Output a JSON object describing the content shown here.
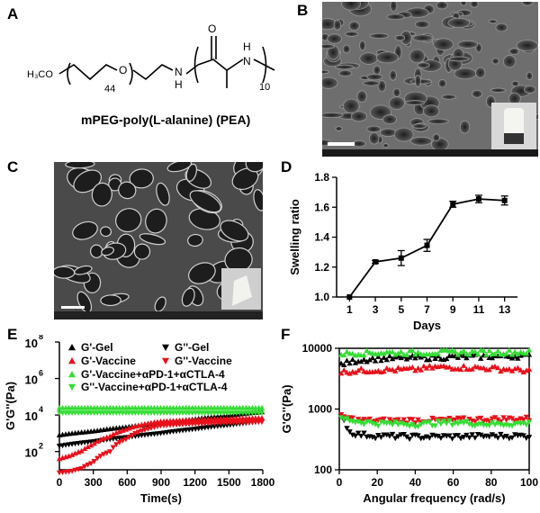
{
  "panels": {
    "A": {
      "letter": "A",
      "molecule_name": "mPEG-poly(L-alanine) (PEA)",
      "atoms": {
        "o_carbonyl": "O",
        "h1": "H",
        "n1": "N",
        "h2": "H",
        "n2": "N",
        "o_ether": "O",
        "methoxy": "H₃CO"
      },
      "subscripts": {
        "peg": "44",
        "pala": "10"
      }
    },
    "B": {
      "letter": "B"
    },
    "C": {
      "letter": "C"
    },
    "D": {
      "letter": "D"
    },
    "E": {
      "letter": "E"
    },
    "F": {
      "letter": "F"
    }
  },
  "chart_data": [
    {
      "panel": "D",
      "type": "line",
      "xlabel": "Days",
      "ylabel": "Swelling ratio",
      "x": [
        1,
        3,
        5,
        7,
        9,
        11,
        13
      ],
      "series": [
        {
          "values": [
            1.0,
            1.235,
            1.26,
            1.345,
            1.62,
            1.655,
            1.645
          ],
          "errors": [
            0.0,
            0.01,
            0.05,
            0.04,
            0.02,
            0.025,
            0.03
          ],
          "color": "#000000"
        }
      ],
      "xticks": [
        "1",
        "3",
        "5",
        "7",
        "9",
        "11",
        "13"
      ],
      "yticks": [
        "1.0",
        "1.2",
        "1.4",
        "1.6",
        "1.8"
      ],
      "ylim": [
        1.0,
        1.8
      ]
    },
    {
      "panel": "E",
      "type": "scatter",
      "xlabel": "Time(s)",
      "ylabel": "G'G''(Pa)",
      "xlim": [
        0,
        1800
      ],
      "ylim_log10": [
        1,
        8
      ],
      "xticks": [
        "0",
        "300",
        "600",
        "900",
        "1200",
        "1500",
        "1800"
      ],
      "yticks": [
        {
          "base": "10",
          "exp": "2"
        },
        {
          "base": "10",
          "exp": "4"
        },
        {
          "base": "10",
          "exp": "6"
        },
        {
          "base": "10",
          "exp": "8"
        }
      ],
      "legend": [
        {
          "label": "G'-Gel",
          "marker": "triangle-up",
          "color": "#000000"
        },
        {
          "label": "G''-Gel",
          "marker": "triangle-down",
          "color": "#000000"
        },
        {
          "label": "G'-Vaccine",
          "marker": "triangle-up",
          "color": "#e8101a"
        },
        {
          "label": "G''-Vaccine",
          "marker": "triangle-down",
          "color": "#e8101a"
        },
        {
          "label": "G'-Vaccine+αPD-1+αCTLA-4",
          "marker": "triangle-up",
          "color": "#33dd33"
        },
        {
          "label": "G''-Vaccine+αPD-1+αCTLA-4",
          "marker": "triangle-down",
          "color": "#33dd33"
        }
      ],
      "series": [
        {
          "name": "G'-Gel",
          "color": "#000000",
          "marker": "triangle-up",
          "x": [
            0,
            300,
            600,
            900,
            1200,
            1500,
            1800
          ],
          "y": [
            800,
            1300,
            2200,
            3600,
            6000,
            9500,
            15000
          ]
        },
        {
          "name": "G''-Gel",
          "color": "#000000",
          "marker": "triangle-down",
          "x": [
            0,
            300,
            600,
            900,
            1200,
            1500,
            1800
          ],
          "y": [
            200,
            350,
            600,
            1000,
            1700,
            2800,
            4500
          ]
        },
        {
          "name": "G'-Vaccine",
          "color": "#e8101a",
          "marker": "triangle-up",
          "x": [
            0,
            100,
            200,
            300,
            450,
            600,
            750,
            900,
            1200,
            1500,
            1800
          ],
          "y": [
            40,
            60,
            110,
            250,
            700,
            1700,
            3200,
            4500,
            5500,
            6300,
            7000
          ]
        },
        {
          "name": "G''-Vaccine",
          "color": "#e8101a",
          "marker": "triangle-down",
          "x": [
            0,
            100,
            200,
            300,
            450,
            600,
            750,
            900,
            1200,
            1500,
            1800
          ],
          "y": [
            7,
            8,
            12,
            25,
            100,
            500,
            1500,
            2600,
            3300,
            3800,
            4200
          ]
        },
        {
          "name": "G'-Vaccine+αPD-1+αCTLA-4",
          "color": "#33dd33",
          "marker": "triangle-up",
          "x": [
            0,
            300,
            600,
            900,
            1200,
            1500,
            1800
          ],
          "y": [
            25000,
            25000,
            25000,
            25000,
            25000,
            25000,
            25000
          ]
        },
        {
          "name": "G''-Vaccine+αPD-1+αCTLA-4",
          "color": "#33dd33",
          "marker": "triangle-down",
          "x": [
            0,
            300,
            600,
            900,
            1200,
            1500,
            1800
          ],
          "y": [
            13000,
            13000,
            13000,
            13000,
            13000,
            13000,
            13000
          ]
        }
      ]
    },
    {
      "panel": "F",
      "type": "scatter",
      "xlabel": "Angular frequency (rad/s)",
      "ylabel": "G'G''(Pa)",
      "xlim": [
        0,
        100
      ],
      "ylim_log10": [
        2,
        4
      ],
      "xticks": [
        "0",
        "20",
        "40",
        "60",
        "80",
        "100"
      ],
      "yticks": [
        "100",
        "1000",
        "10000"
      ],
      "series": [
        {
          "name": "G'-Gel",
          "color": "#000000",
          "marker": "triangle-up",
          "x": [
            1,
            10,
            20,
            40,
            60,
            80,
            100
          ],
          "y": [
            5500,
            6400,
            6800,
            7000,
            7200,
            7400,
            7500
          ]
        },
        {
          "name": "G''-Gel",
          "color": "#000000",
          "marker": "triangle-down",
          "x": [
            1,
            5,
            10,
            20,
            40,
            60,
            80,
            100
          ],
          "y": [
            800,
            420,
            380,
            360,
            350,
            350,
            360,
            360
          ]
        },
        {
          "name": "G'-Vaccine",
          "color": "#e8101a",
          "marker": "triangle-up",
          "x": [
            1,
            10,
            20,
            40,
            50,
            60,
            80,
            100
          ],
          "y": [
            4100,
            4300,
            4400,
            4500,
            4900,
            4900,
            4700,
            4300
          ]
        },
        {
          "name": "G''-Vaccine",
          "color": "#e8101a",
          "marker": "triangle-down",
          "x": [
            1,
            10,
            20,
            40,
            60,
            80,
            100
          ],
          "y": [
            750,
            650,
            640,
            650,
            660,
            680,
            690
          ]
        },
        {
          "name": "G'-Vaccine+αPD-1+αCTLA-4",
          "color": "#33dd33",
          "marker": "triangle-up",
          "x": [
            1,
            10,
            20,
            40,
            60,
            80,
            100
          ],
          "y": [
            8200,
            8400,
            8500,
            8500,
            8600,
            8600,
            8700
          ]
        },
        {
          "name": "G''-Vaccine+αPD-1+αCTLA-4",
          "color": "#33dd33",
          "marker": "triangle-down",
          "x": [
            1,
            10,
            20,
            40,
            60,
            80,
            100
          ],
          "y": [
            700,
            620,
            580,
            560,
            600,
            560,
            580
          ]
        }
      ]
    }
  ]
}
